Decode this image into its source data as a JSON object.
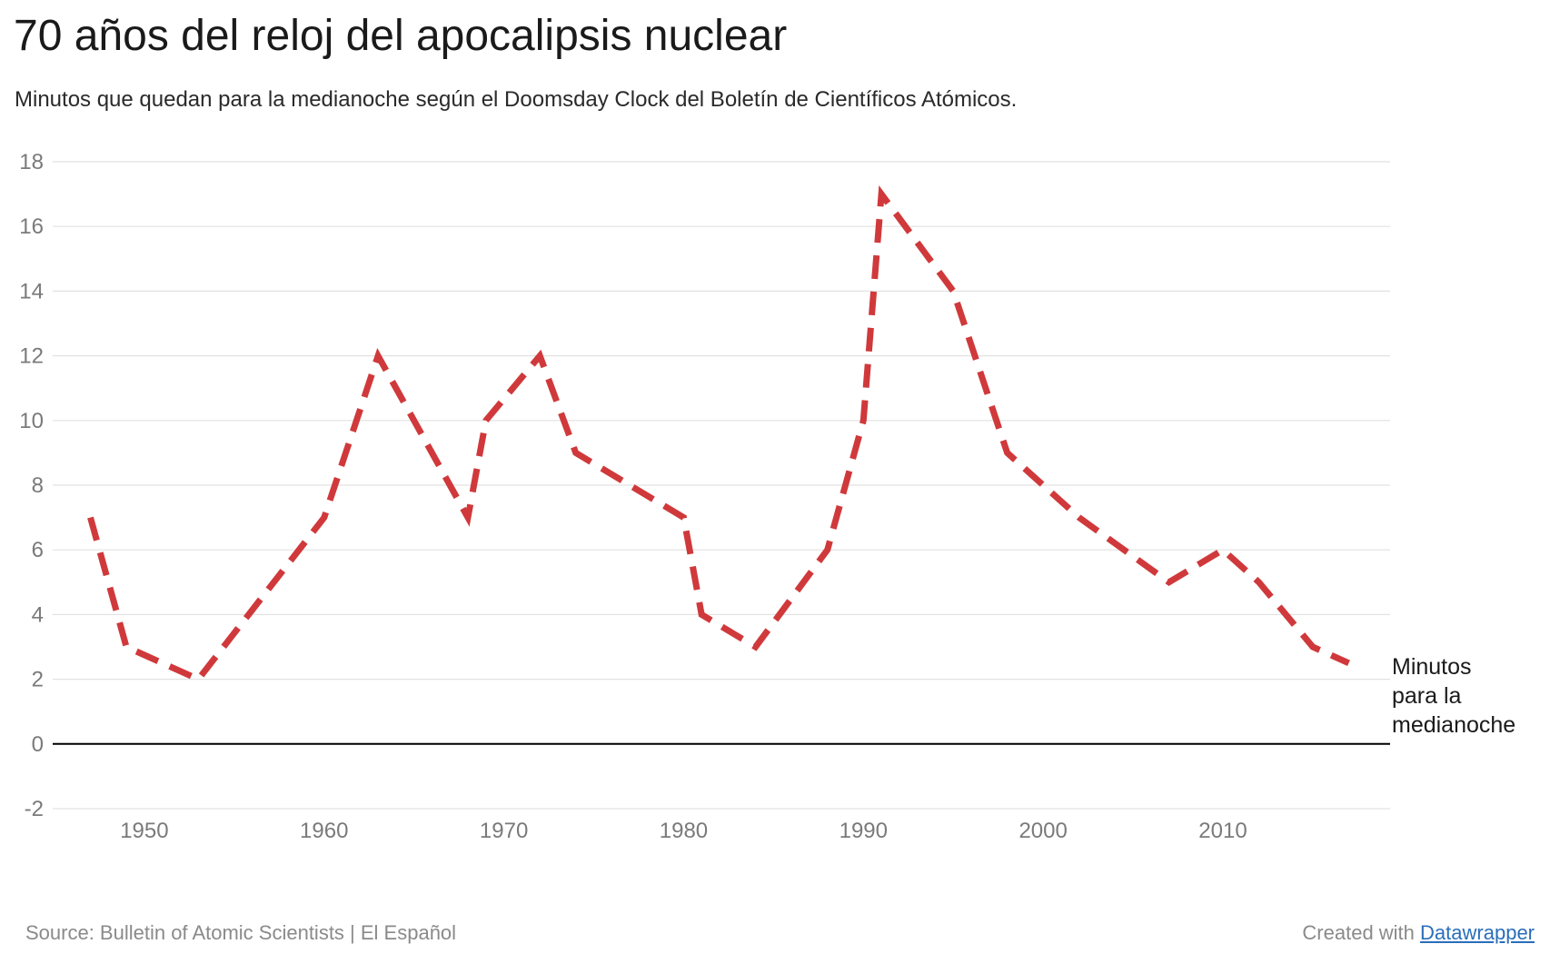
{
  "header": {
    "title": "70 años del reloj del apocalipsis nuclear",
    "subtitle": "Minutos que quedan para la medianoche según el Doomsday Clock del Boletín de Científicos Atómicos."
  },
  "footer": {
    "source": "Source: Bulletin of Atomic Scientists | El Español",
    "credit_prefix": "Created with",
    "credit_link": "Datawrapper"
  },
  "colors": {
    "line": "#d0393b",
    "grid": "#e2e2e2",
    "zero_line": "#000000",
    "tick_text": "#7a7a7a",
    "link": "#2a6ebb"
  },
  "chart_data": {
    "type": "line",
    "title": "70 años del reloj del apocalipsis nuclear",
    "subtitle": "Minutos que quedan para la medianoche según el Doomsday Clock del Boletín de Científicos Atómicos.",
    "xlabel": "",
    "ylabel": "",
    "xlim": [
      1944.9,
      2019.3
    ],
    "ylim": [
      -2,
      18
    ],
    "x_ticks": [
      1950,
      1960,
      1970,
      1980,
      1990,
      2000,
      2010
    ],
    "y_ticks": [
      -2,
      0,
      2,
      4,
      6,
      8,
      10,
      12,
      14,
      16,
      18
    ],
    "grid": true,
    "legend": "none",
    "series": [
      {
        "name": "Minutos para la medianoche",
        "label_lines": [
          "Minutos",
          "para la",
          "medianoche"
        ],
        "line_style": "dashed",
        "x": [
          1947,
          1949,
          1953,
          1960,
          1963,
          1968,
          1969,
          1972,
          1974,
          1980,
          1981,
          1984,
          1988,
          1990,
          1991,
          1995,
          1998,
          2002,
          2007,
          2010,
          2012,
          2015,
          2017
        ],
        "values": [
          7,
          3,
          2,
          7,
          12,
          7,
          10,
          12,
          9,
          7,
          4,
          3,
          6,
          10,
          17,
          14,
          9,
          7,
          5,
          6,
          5,
          3,
          2.5
        ]
      }
    ]
  }
}
